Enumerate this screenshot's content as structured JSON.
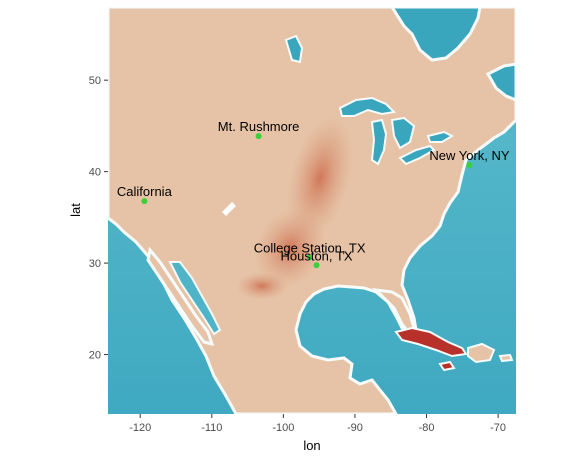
{
  "chart_data": {
    "type": "map",
    "basemap": "watercolor",
    "xlabel": "lon",
    "ylabel": "lat",
    "xlim": [
      -124.5,
      -67.5
    ],
    "ylim": [
      13.5,
      58.0
    ],
    "x_ticks": [
      -120,
      -110,
      -100,
      -90,
      -80,
      -70
    ],
    "y_ticks": [
      20,
      30,
      40,
      50
    ],
    "x_tick_labels": [
      "-120",
      "-110",
      "-100",
      "-90",
      "-80",
      "-70"
    ],
    "y_tick_labels": [
      "20",
      "30",
      "40",
      "50"
    ],
    "point_color": "#39d13a",
    "label_color": "#000000",
    "points": [
      {
        "label": "Mt. Rushmore",
        "lon": -103.46,
        "lat": 43.88
      },
      {
        "label": "New York, NY",
        "lon": -74.0,
        "lat": 40.71
      },
      {
        "label": "California",
        "lon": -119.42,
        "lat": 36.78
      },
      {
        "label": "College Station, TX",
        "lon": -96.33,
        "lat": 30.63
      },
      {
        "label": "Houston, TX",
        "lon": -95.37,
        "lat": 29.76
      }
    ],
    "colors": {
      "land": "#e7c7ac",
      "land_dark": "#c86e50",
      "water": "#4fb4c8",
      "water_light": "#7fcbd8",
      "coast": "#f6fbfb",
      "cuba": "#b8302a"
    }
  }
}
